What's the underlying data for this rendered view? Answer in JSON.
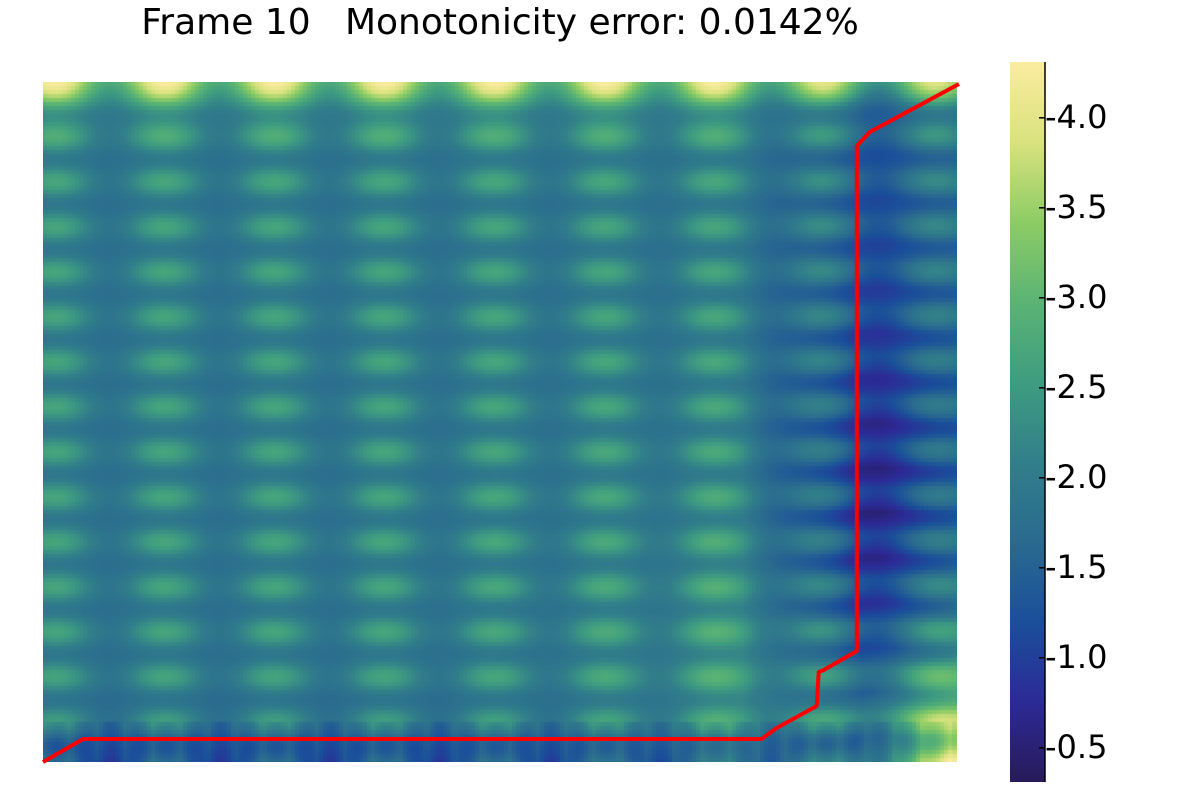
{
  "chart_data": {
    "type": "heatmap",
    "title": "Frame 10   Monotonicity error: 0.0142%",
    "xlabel": "",
    "ylabel": "",
    "grid": false,
    "colorbar": {
      "range": [
        0.31,
        4.31
      ],
      "ticks": [
        0.5,
        1.0,
        1.5,
        2.0,
        2.5,
        3.0,
        3.5,
        4.0
      ],
      "tick_labels": [
        "0.5",
        "1.0",
        "1.5",
        "2.0",
        "2.5",
        "3.0",
        "3.5",
        "4.0"
      ],
      "colormap": [
        "#281a5a",
        "#2c2a96",
        "#1a4f9a",
        "#2a6a8f",
        "#317f8a",
        "#3f9c80",
        "#5ab474",
        "#8dcc65",
        "#d9e27e",
        "#fbeca0"
      ]
    },
    "heatmap": {
      "columns": 228,
      "rows": 170,
      "pattern": "periodic grid of value ~1.2–3.0, high (~4.2) along top edge and bottom-right corner, low (~0.4) in the right-hand region"
    },
    "path": {
      "color": "#ff0000",
      "points_col_row": [
        [
          0,
          170
        ],
        [
          10,
          164.25
        ],
        [
          179.25,
          164.25
        ],
        [
          183,
          161.5
        ],
        [
          193,
          156
        ],
        [
          193.5,
          147.5
        ],
        [
          194.75,
          147
        ],
        [
          203,
          142.25
        ],
        [
          203,
          16
        ],
        [
          206.25,
          12.5
        ],
        [
          228.5,
          0.5
        ]
      ]
    }
  }
}
